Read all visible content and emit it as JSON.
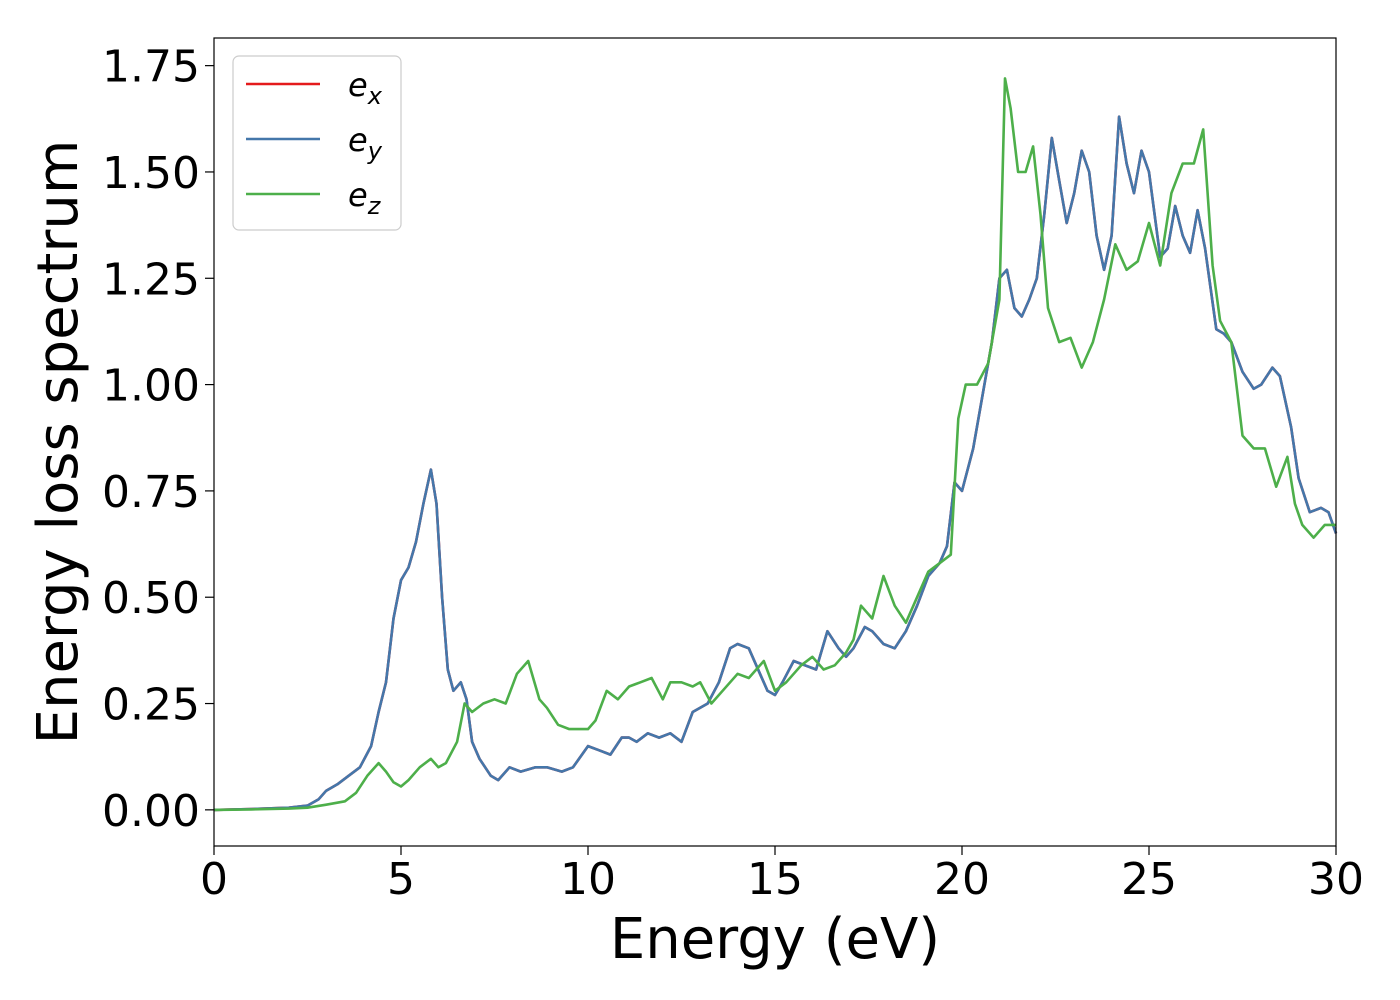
{
  "chart_data": {
    "type": "line",
    "xlabel": "Energy (eV)",
    "ylabel": "Energy loss spectrum",
    "xlim": [
      0,
      30
    ],
    "ylim": [
      -0.085,
      1.815
    ],
    "xticks": [
      0,
      5,
      10,
      15,
      20,
      25,
      30
    ],
    "xtick_labels": [
      "0",
      "5",
      "10",
      "15",
      "20",
      "25",
      "30"
    ],
    "yticks": [
      0.0,
      0.25,
      0.5,
      0.75,
      1.0,
      1.25,
      1.5,
      1.75
    ],
    "ytick_labels": [
      "0.00",
      "0.25",
      "0.50",
      "0.75",
      "1.00",
      "1.25",
      "1.50",
      "1.75"
    ],
    "grid": false,
    "legend_position": "top-left",
    "series": [
      {
        "name_base": "e",
        "name_sub": "x",
        "color": "#e41a1c",
        "x": [
          0,
          1,
          2,
          2.5,
          2.8,
          3.0,
          3.3,
          3.6,
          3.9,
          4.2,
          4.4,
          4.6,
          4.8,
          5.0,
          5.2,
          5.4,
          5.6,
          5.8,
          5.95,
          6.1,
          6.25,
          6.4,
          6.6,
          6.75,
          6.9,
          7.1,
          7.4,
          7.6,
          7.9,
          8.2,
          8.6,
          8.9,
          9.3,
          9.6,
          10.0,
          10.3,
          10.6,
          10.9,
          11.1,
          11.3,
          11.6,
          11.9,
          12.2,
          12.5,
          12.8,
          13.2,
          13.5,
          13.8,
          14.0,
          14.3,
          14.6,
          14.8,
          15.0,
          15.2,
          15.5,
          15.8,
          16.1,
          16.4,
          16.7,
          16.9,
          17.1,
          17.4,
          17.6,
          17.9,
          18.2,
          18.5,
          18.8,
          19.1,
          19.4,
          19.6,
          19.8,
          20.0,
          20.3,
          20.6,
          20.8,
          21.0,
          21.2,
          21.4,
          21.6,
          21.8,
          22.0,
          22.2,
          22.4,
          22.6,
          22.8,
          23.0,
          23.2,
          23.4,
          23.6,
          23.8,
          24.0,
          24.2,
          24.4,
          24.6,
          24.8,
          25.0,
          25.3,
          25.5,
          25.7,
          25.9,
          26.1,
          26.3,
          26.5,
          26.8,
          27.0,
          27.2,
          27.5,
          27.8,
          28.0,
          28.3,
          28.5,
          28.8,
          29.0,
          29.3,
          29.6,
          29.8,
          30.0
        ],
        "y": [
          0,
          0.002,
          0.005,
          0.01,
          0.025,
          0.045,
          0.06,
          0.08,
          0.1,
          0.15,
          0.23,
          0.3,
          0.45,
          0.54,
          0.57,
          0.63,
          0.72,
          0.8,
          0.72,
          0.5,
          0.33,
          0.28,
          0.3,
          0.26,
          0.16,
          0.12,
          0.08,
          0.07,
          0.1,
          0.09,
          0.1,
          0.1,
          0.09,
          0.1,
          0.15,
          0.14,
          0.13,
          0.17,
          0.17,
          0.16,
          0.18,
          0.17,
          0.18,
          0.16,
          0.23,
          0.25,
          0.3,
          0.38,
          0.39,
          0.38,
          0.32,
          0.28,
          0.27,
          0.3,
          0.35,
          0.34,
          0.33,
          0.42,
          0.38,
          0.36,
          0.38,
          0.43,
          0.42,
          0.39,
          0.38,
          0.42,
          0.48,
          0.55,
          0.58,
          0.62,
          0.77,
          0.75,
          0.85,
          1.0,
          1.1,
          1.25,
          1.27,
          1.18,
          1.16,
          1.2,
          1.25,
          1.4,
          1.58,
          1.48,
          1.38,
          1.45,
          1.55,
          1.5,
          1.35,
          1.27,
          1.35,
          1.63,
          1.52,
          1.45,
          1.55,
          1.5,
          1.3,
          1.32,
          1.42,
          1.35,
          1.31,
          1.41,
          1.32,
          1.13,
          1.12,
          1.1,
          1.03,
          0.99,
          1.0,
          1.04,
          1.02,
          0.9,
          0.78,
          0.7,
          0.71,
          0.7,
          0.65
        ]
      },
      {
        "name_base": "e",
        "name_sub": "y",
        "color": "#4477aa",
        "x": [
          0,
          1,
          2,
          2.5,
          2.8,
          3.0,
          3.3,
          3.6,
          3.9,
          4.2,
          4.4,
          4.6,
          4.8,
          5.0,
          5.2,
          5.4,
          5.6,
          5.8,
          5.95,
          6.1,
          6.25,
          6.4,
          6.6,
          6.75,
          6.9,
          7.1,
          7.4,
          7.6,
          7.9,
          8.2,
          8.6,
          8.9,
          9.3,
          9.6,
          10.0,
          10.3,
          10.6,
          10.9,
          11.1,
          11.3,
          11.6,
          11.9,
          12.2,
          12.5,
          12.8,
          13.2,
          13.5,
          13.8,
          14.0,
          14.3,
          14.6,
          14.8,
          15.0,
          15.2,
          15.5,
          15.8,
          16.1,
          16.4,
          16.7,
          16.9,
          17.1,
          17.4,
          17.6,
          17.9,
          18.2,
          18.5,
          18.8,
          19.1,
          19.4,
          19.6,
          19.8,
          20.0,
          20.3,
          20.6,
          20.8,
          21.0,
          21.2,
          21.4,
          21.6,
          21.8,
          22.0,
          22.2,
          22.4,
          22.6,
          22.8,
          23.0,
          23.2,
          23.4,
          23.6,
          23.8,
          24.0,
          24.2,
          24.4,
          24.6,
          24.8,
          25.0,
          25.3,
          25.5,
          25.7,
          25.9,
          26.1,
          26.3,
          26.5,
          26.8,
          27.0,
          27.2,
          27.5,
          27.8,
          28.0,
          28.3,
          28.5,
          28.8,
          29.0,
          29.3,
          29.6,
          29.8,
          30.0
        ],
        "y": [
          0,
          0.002,
          0.005,
          0.01,
          0.025,
          0.045,
          0.06,
          0.08,
          0.1,
          0.15,
          0.23,
          0.3,
          0.45,
          0.54,
          0.57,
          0.63,
          0.72,
          0.8,
          0.72,
          0.5,
          0.33,
          0.28,
          0.3,
          0.26,
          0.16,
          0.12,
          0.08,
          0.07,
          0.1,
          0.09,
          0.1,
          0.1,
          0.09,
          0.1,
          0.15,
          0.14,
          0.13,
          0.17,
          0.17,
          0.16,
          0.18,
          0.17,
          0.18,
          0.16,
          0.23,
          0.25,
          0.3,
          0.38,
          0.39,
          0.38,
          0.32,
          0.28,
          0.27,
          0.3,
          0.35,
          0.34,
          0.33,
          0.42,
          0.38,
          0.36,
          0.38,
          0.43,
          0.42,
          0.39,
          0.38,
          0.42,
          0.48,
          0.55,
          0.58,
          0.62,
          0.77,
          0.75,
          0.85,
          1.0,
          1.1,
          1.25,
          1.27,
          1.18,
          1.16,
          1.2,
          1.25,
          1.4,
          1.58,
          1.48,
          1.38,
          1.45,
          1.55,
          1.5,
          1.35,
          1.27,
          1.35,
          1.63,
          1.52,
          1.45,
          1.55,
          1.5,
          1.3,
          1.32,
          1.42,
          1.35,
          1.31,
          1.41,
          1.32,
          1.13,
          1.12,
          1.1,
          1.03,
          0.99,
          1.0,
          1.04,
          1.02,
          0.9,
          0.78,
          0.7,
          0.71,
          0.7,
          0.65
        ]
      },
      {
        "name_base": "e",
        "name_sub": "z",
        "color": "#4daf4a",
        "x": [
          0,
          1,
          2,
          2.5,
          3.0,
          3.5,
          3.8,
          4.1,
          4.4,
          4.6,
          4.8,
          5.0,
          5.2,
          5.5,
          5.8,
          6.0,
          6.2,
          6.5,
          6.7,
          6.9,
          7.2,
          7.5,
          7.8,
          8.1,
          8.4,
          8.7,
          8.9,
          9.2,
          9.5,
          10.0,
          10.2,
          10.5,
          10.8,
          11.1,
          11.4,
          11.7,
          12.0,
          12.2,
          12.5,
          12.8,
          13.0,
          13.3,
          13.6,
          14.0,
          14.3,
          14.7,
          15.0,
          15.3,
          15.7,
          16.0,
          16.3,
          16.6,
          16.9,
          17.1,
          17.3,
          17.6,
          17.9,
          18.2,
          18.5,
          18.8,
          19.1,
          19.4,
          19.7,
          19.9,
          20.1,
          20.4,
          20.7,
          21.0,
          21.15,
          21.3,
          21.5,
          21.7,
          21.9,
          22.1,
          22.3,
          22.6,
          22.9,
          23.2,
          23.5,
          23.8,
          24.1,
          24.4,
          24.7,
          25.0,
          25.3,
          25.6,
          25.9,
          26.2,
          26.45,
          26.7,
          26.9,
          27.2,
          27.5,
          27.8,
          28.1,
          28.4,
          28.7,
          28.9,
          29.1,
          29.4,
          29.7,
          30.0
        ],
        "y": [
          0,
          0.001,
          0.003,
          0.005,
          0.012,
          0.02,
          0.04,
          0.08,
          0.11,
          0.09,
          0.065,
          0.055,
          0.07,
          0.1,
          0.12,
          0.1,
          0.11,
          0.16,
          0.25,
          0.23,
          0.25,
          0.26,
          0.25,
          0.32,
          0.35,
          0.26,
          0.24,
          0.2,
          0.19,
          0.19,
          0.21,
          0.28,
          0.26,
          0.29,
          0.3,
          0.31,
          0.26,
          0.3,
          0.3,
          0.29,
          0.3,
          0.25,
          0.28,
          0.32,
          0.31,
          0.35,
          0.28,
          0.3,
          0.34,
          0.36,
          0.33,
          0.34,
          0.37,
          0.4,
          0.48,
          0.45,
          0.55,
          0.48,
          0.44,
          0.5,
          0.56,
          0.58,
          0.6,
          0.92,
          1.0,
          1.0,
          1.05,
          1.2,
          1.72,
          1.65,
          1.5,
          1.5,
          1.56,
          1.4,
          1.18,
          1.1,
          1.11,
          1.04,
          1.1,
          1.2,
          1.33,
          1.27,
          1.29,
          1.38,
          1.28,
          1.45,
          1.52,
          1.52,
          1.6,
          1.28,
          1.15,
          1.1,
          0.88,
          0.85,
          0.85,
          0.76,
          0.83,
          0.72,
          0.67,
          0.64,
          0.67,
          0.67
        ]
      }
    ]
  }
}
